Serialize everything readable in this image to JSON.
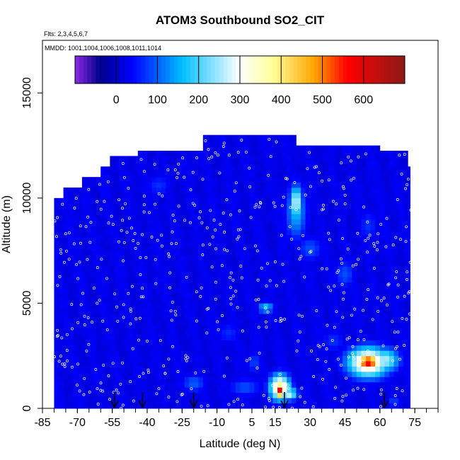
{
  "chart_data": {
    "type": "heatmap",
    "title": "ATOM3 Southbound SO2_CIT",
    "subtitle_flights": "Flts: 2,3,4,5,6,7",
    "subtitle_dates": "MMDD: 1001,1004,1006,1008,1011,1014",
    "xlabel": "Latitude (deg N)",
    "ylabel": "Altitude (m)",
    "xlim": [
      -85,
      85
    ],
    "ylim": [
      0,
      17500
    ],
    "x_tick_labels": [
      "-85",
      "-70",
      "-55",
      "-40",
      "-25",
      "-10",
      "5",
      "15",
      "30",
      "45",
      "60",
      "75"
    ],
    "x_tick_values": [
      -85,
      -70,
      -55,
      -40,
      -25,
      -10,
      5,
      15,
      30,
      45,
      60,
      75
    ],
    "x_minor_step": 5,
    "y_tick_labels": [
      "0",
      "5000",
      "10000",
      "15000"
    ],
    "y_tick_values": [
      0,
      5000,
      10000,
      15000
    ],
    "colorbar": {
      "range": [
        -100,
        700
      ],
      "tick_labels": [
        "0",
        "100",
        "200",
        "300",
        "400",
        "500",
        "600"
      ],
      "tick_values": [
        0,
        100,
        200,
        300,
        400,
        500,
        600
      ],
      "colors": [
        "#8a2be2",
        "#00008b",
        "#0000ff",
        "#00bfff",
        "#ffffff",
        "#ffff99",
        "#ffa500",
        "#ff0000",
        "#8b1a1a"
      ],
      "stops": [
        -100,
        -40,
        40,
        160,
        300,
        380,
        480,
        560,
        700
      ]
    },
    "background_value": 25,
    "envelope": [
      [
        -80,
        0,
        10000
      ],
      [
        -76,
        0,
        10400
      ],
      [
        -72,
        0,
        10400
      ],
      [
        -68,
        0,
        10800
      ],
      [
        -64,
        0,
        11000
      ],
      [
        -60,
        0,
        11500
      ],
      [
        -56,
        0,
        11800
      ],
      [
        -52,
        0,
        12000
      ],
      [
        -48,
        0,
        12000
      ],
      [
        -44,
        0,
        12200
      ],
      [
        -40,
        0,
        12200
      ],
      [
        -36,
        0,
        12200
      ],
      [
        -32,
        0,
        12200
      ],
      [
        -28,
        0,
        12200
      ],
      [
        -24,
        0,
        12200
      ],
      [
        -20,
        0,
        12200
      ],
      [
        -16,
        0,
        12900
      ],
      [
        -12,
        0,
        12900
      ],
      [
        -8,
        0,
        12900
      ],
      [
        -4,
        0,
        12900
      ],
      [
        0,
        0,
        12900
      ],
      [
        4,
        0,
        12900
      ],
      [
        8,
        0,
        12900
      ],
      [
        12,
        0,
        12900
      ],
      [
        16,
        0,
        12900
      ],
      [
        20,
        0,
        12900
      ],
      [
        24,
        0,
        12500
      ],
      [
        28,
        0,
        12500
      ],
      [
        32,
        0,
        12500
      ],
      [
        36,
        0,
        12500
      ],
      [
        40,
        0,
        12500
      ],
      [
        44,
        0,
        12500
      ],
      [
        48,
        0,
        12500
      ],
      [
        52,
        0,
        12500
      ],
      [
        56,
        0,
        12500
      ],
      [
        60,
        0,
        12200
      ],
      [
        64,
        0,
        12200
      ],
      [
        68,
        0,
        12200
      ],
      [
        71,
        0,
        11500
      ]
    ],
    "features": [
      {
        "lat": 55,
        "alt": 2200,
        "dlat": 6,
        "dalt": 450,
        "value": 600
      },
      {
        "lat": 55,
        "alt": 2200,
        "dlat": 10,
        "dalt": 800,
        "value": 400
      },
      {
        "lat": 62,
        "alt": 2300,
        "dlat": 7,
        "dalt": 650,
        "value": 260
      },
      {
        "lat": 17,
        "alt": 800,
        "dlat": 2.5,
        "dalt": 300,
        "value": 650
      },
      {
        "lat": 17,
        "alt": 1000,
        "dlat": 5,
        "dalt": 700,
        "value": 400
      },
      {
        "lat": 21,
        "alt": 700,
        "dlat": 4,
        "dalt": 350,
        "value": 280
      },
      {
        "lat": 24,
        "alt": 9800,
        "dlat": 2.5,
        "dalt": 900,
        "value": 300
      },
      {
        "lat": 24,
        "alt": 9400,
        "dlat": 5,
        "dalt": 1500,
        "value": 160
      },
      {
        "lat": 11,
        "alt": 4800,
        "dlat": 4,
        "dalt": 300,
        "value": 170
      },
      {
        "lat": 30,
        "alt": 7600,
        "dlat": 6,
        "dalt": 700,
        "value": 90
      },
      {
        "lat": 45,
        "alt": 6400,
        "dlat": 5,
        "dalt": 800,
        "value": 90
      },
      {
        "lat": -20,
        "alt": 1200,
        "dlat": 6,
        "dalt": 500,
        "value": 100
      },
      {
        "lat": 2,
        "alt": 1000,
        "dlat": 8,
        "dalt": 500,
        "value": 90
      },
      {
        "lat": 55,
        "alt": 8700,
        "dlat": 5,
        "dalt": 900,
        "value": 70
      },
      {
        "lat": -35,
        "alt": 10600,
        "dlat": 6,
        "dalt": 600,
        "value": 70
      },
      {
        "lat": 6,
        "alt": 2200,
        "dlat": 4,
        "dalt": 600,
        "value": 80
      },
      {
        "lat": 40,
        "alt": 3200,
        "dlat": 6,
        "dalt": 600,
        "value": 70
      },
      {
        "lat": -5,
        "alt": 3600,
        "dlat": 6,
        "dalt": 600,
        "value": 65
      },
      {
        "lat": 66,
        "alt": 300,
        "dlat": 4,
        "dalt": 300,
        "value": 80
      }
    ],
    "arrow_latitudes": [
      -54,
      -42,
      -20,
      19,
      62
    ]
  }
}
